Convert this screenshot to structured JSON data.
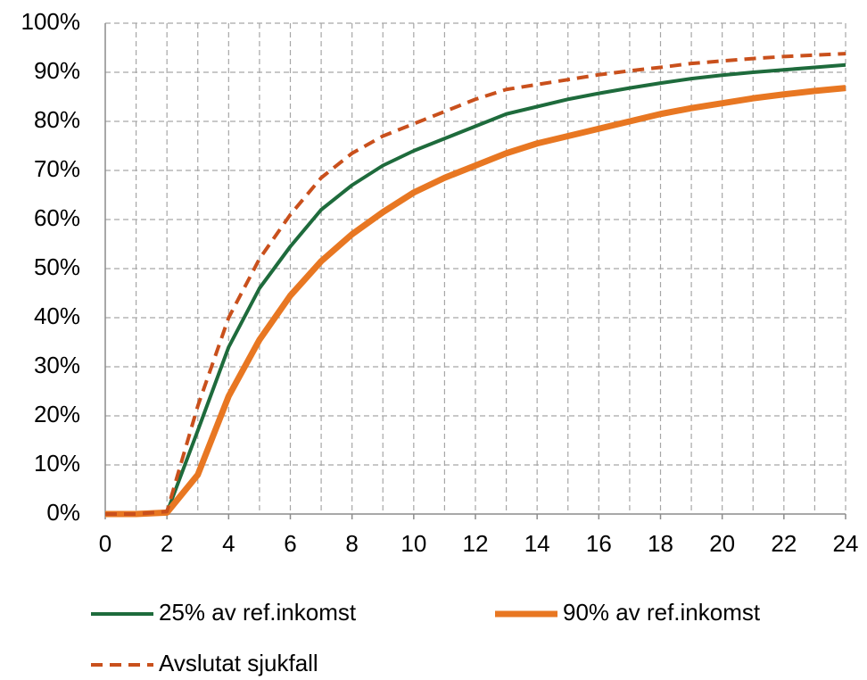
{
  "chart_data": {
    "type": "line",
    "x": [
      0,
      1,
      2,
      3,
      4,
      5,
      6,
      7,
      8,
      9,
      10,
      11,
      12,
      13,
      14,
      15,
      16,
      17,
      18,
      19,
      20,
      21,
      22,
      23,
      24
    ],
    "xlim": [
      0,
      24
    ],
    "xticks": [
      0,
      2,
      4,
      6,
      8,
      10,
      12,
      14,
      16,
      18,
      20,
      22,
      24
    ],
    "ylim": [
      0,
      100
    ],
    "yticks": [
      {
        "value": 0,
        "label": "0%"
      },
      {
        "value": 10,
        "label": "10%"
      },
      {
        "value": 20,
        "label": "20%"
      },
      {
        "value": 30,
        "label": "30%"
      },
      {
        "value": 40,
        "label": "40%"
      },
      {
        "value": 50,
        "label": "50%"
      },
      {
        "value": 60,
        "label": "60%"
      },
      {
        "value": 70,
        "label": "70%"
      },
      {
        "value": 80,
        "label": "80%"
      },
      {
        "value": 90,
        "label": "90%"
      },
      {
        "value": 100,
        "label": "100%"
      }
    ],
    "grid": true,
    "legend": "bottom",
    "series": [
      {
        "name": "25% av ref.inkomst",
        "color": "#1e6b3c",
        "values": [
          0,
          0,
          0.3,
          17,
          34,
          46,
          54.5,
          62,
          67,
          71,
          74,
          76.5,
          79,
          81.5,
          83,
          84.5,
          85.7,
          86.8,
          87.8,
          88.7,
          89.4,
          90,
          90.5,
          91,
          91.5
        ]
      },
      {
        "name": "90% av ref.inkomst",
        "color": "#e87722",
        "values": [
          0,
          0,
          0.3,
          8,
          24,
          35.5,
          44.5,
          51.5,
          57,
          61.5,
          65.5,
          68.5,
          71,
          73.5,
          75.5,
          77,
          78.5,
          80,
          81.5,
          82.7,
          83.7,
          84.7,
          85.5,
          86.2,
          86.8
        ]
      },
      {
        "name": "Avslutat sjukfall",
        "color": "#c9501c",
        "values": [
          0,
          0,
          0.5,
          22,
          40,
          52,
          61,
          68.5,
          73.5,
          77,
          79.5,
          82,
          84.5,
          86.5,
          87.5,
          88.5,
          89.5,
          90.3,
          91,
          91.8,
          92.3,
          92.8,
          93.2,
          93.5,
          93.8
        ]
      }
    ]
  }
}
